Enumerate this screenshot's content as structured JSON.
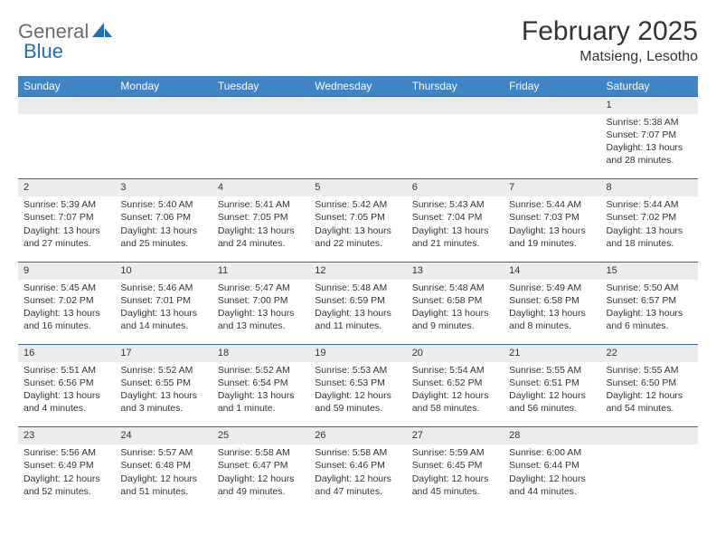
{
  "logo": {
    "part1": "General",
    "part2": "Blue"
  },
  "title": "February 2025",
  "location": "Matsieng, Lesotho",
  "header_bg": "#3f84c4",
  "daynum_bg": "#ececec",
  "border_color": "#2f6aa3",
  "dayNames": [
    "Sunday",
    "Monday",
    "Tuesday",
    "Wednesday",
    "Thursday",
    "Friday",
    "Saturday"
  ],
  "weeks": [
    [
      {
        "num": "",
        "lines": [
          "",
          "",
          "",
          ""
        ]
      },
      {
        "num": "",
        "lines": [
          "",
          "",
          "",
          ""
        ]
      },
      {
        "num": "",
        "lines": [
          "",
          "",
          "",
          ""
        ]
      },
      {
        "num": "",
        "lines": [
          "",
          "",
          "",
          ""
        ]
      },
      {
        "num": "",
        "lines": [
          "",
          "",
          "",
          ""
        ]
      },
      {
        "num": "",
        "lines": [
          "",
          "",
          "",
          ""
        ]
      },
      {
        "num": "1",
        "lines": [
          "Sunrise: 5:38 AM",
          "Sunset: 7:07 PM",
          "Daylight: 13 hours",
          "and 28 minutes."
        ]
      }
    ],
    [
      {
        "num": "2",
        "lines": [
          "Sunrise: 5:39 AM",
          "Sunset: 7:07 PM",
          "Daylight: 13 hours",
          "and 27 minutes."
        ]
      },
      {
        "num": "3",
        "lines": [
          "Sunrise: 5:40 AM",
          "Sunset: 7:06 PM",
          "Daylight: 13 hours",
          "and 25 minutes."
        ]
      },
      {
        "num": "4",
        "lines": [
          "Sunrise: 5:41 AM",
          "Sunset: 7:05 PM",
          "Daylight: 13 hours",
          "and 24 minutes."
        ]
      },
      {
        "num": "5",
        "lines": [
          "Sunrise: 5:42 AM",
          "Sunset: 7:05 PM",
          "Daylight: 13 hours",
          "and 22 minutes."
        ]
      },
      {
        "num": "6",
        "lines": [
          "Sunrise: 5:43 AM",
          "Sunset: 7:04 PM",
          "Daylight: 13 hours",
          "and 21 minutes."
        ]
      },
      {
        "num": "7",
        "lines": [
          "Sunrise: 5:44 AM",
          "Sunset: 7:03 PM",
          "Daylight: 13 hours",
          "and 19 minutes."
        ]
      },
      {
        "num": "8",
        "lines": [
          "Sunrise: 5:44 AM",
          "Sunset: 7:02 PM",
          "Daylight: 13 hours",
          "and 18 minutes."
        ]
      }
    ],
    [
      {
        "num": "9",
        "lines": [
          "Sunrise: 5:45 AM",
          "Sunset: 7:02 PM",
          "Daylight: 13 hours",
          "and 16 minutes."
        ]
      },
      {
        "num": "10",
        "lines": [
          "Sunrise: 5:46 AM",
          "Sunset: 7:01 PM",
          "Daylight: 13 hours",
          "and 14 minutes."
        ]
      },
      {
        "num": "11",
        "lines": [
          "Sunrise: 5:47 AM",
          "Sunset: 7:00 PM",
          "Daylight: 13 hours",
          "and 13 minutes."
        ]
      },
      {
        "num": "12",
        "lines": [
          "Sunrise: 5:48 AM",
          "Sunset: 6:59 PM",
          "Daylight: 13 hours",
          "and 11 minutes."
        ]
      },
      {
        "num": "13",
        "lines": [
          "Sunrise: 5:48 AM",
          "Sunset: 6:58 PM",
          "Daylight: 13 hours",
          "and 9 minutes."
        ]
      },
      {
        "num": "14",
        "lines": [
          "Sunrise: 5:49 AM",
          "Sunset: 6:58 PM",
          "Daylight: 13 hours",
          "and 8 minutes."
        ]
      },
      {
        "num": "15",
        "lines": [
          "Sunrise: 5:50 AM",
          "Sunset: 6:57 PM",
          "Daylight: 13 hours",
          "and 6 minutes."
        ]
      }
    ],
    [
      {
        "num": "16",
        "lines": [
          "Sunrise: 5:51 AM",
          "Sunset: 6:56 PM",
          "Daylight: 13 hours",
          "and 4 minutes."
        ]
      },
      {
        "num": "17",
        "lines": [
          "Sunrise: 5:52 AM",
          "Sunset: 6:55 PM",
          "Daylight: 13 hours",
          "and 3 minutes."
        ]
      },
      {
        "num": "18",
        "lines": [
          "Sunrise: 5:52 AM",
          "Sunset: 6:54 PM",
          "Daylight: 13 hours",
          "and 1 minute."
        ]
      },
      {
        "num": "19",
        "lines": [
          "Sunrise: 5:53 AM",
          "Sunset: 6:53 PM",
          "Daylight: 12 hours",
          "and 59 minutes."
        ]
      },
      {
        "num": "20",
        "lines": [
          "Sunrise: 5:54 AM",
          "Sunset: 6:52 PM",
          "Daylight: 12 hours",
          "and 58 minutes."
        ]
      },
      {
        "num": "21",
        "lines": [
          "Sunrise: 5:55 AM",
          "Sunset: 6:51 PM",
          "Daylight: 12 hours",
          "and 56 minutes."
        ]
      },
      {
        "num": "22",
        "lines": [
          "Sunrise: 5:55 AM",
          "Sunset: 6:50 PM",
          "Daylight: 12 hours",
          "and 54 minutes."
        ]
      }
    ],
    [
      {
        "num": "23",
        "lines": [
          "Sunrise: 5:56 AM",
          "Sunset: 6:49 PM",
          "Daylight: 12 hours",
          "and 52 minutes."
        ]
      },
      {
        "num": "24",
        "lines": [
          "Sunrise: 5:57 AM",
          "Sunset: 6:48 PM",
          "Daylight: 12 hours",
          "and 51 minutes."
        ]
      },
      {
        "num": "25",
        "lines": [
          "Sunrise: 5:58 AM",
          "Sunset: 6:47 PM",
          "Daylight: 12 hours",
          "and 49 minutes."
        ]
      },
      {
        "num": "26",
        "lines": [
          "Sunrise: 5:58 AM",
          "Sunset: 6:46 PM",
          "Daylight: 12 hours",
          "and 47 minutes."
        ]
      },
      {
        "num": "27",
        "lines": [
          "Sunrise: 5:59 AM",
          "Sunset: 6:45 PM",
          "Daylight: 12 hours",
          "and 45 minutes."
        ]
      },
      {
        "num": "28",
        "lines": [
          "Sunrise: 6:00 AM",
          "Sunset: 6:44 PM",
          "Daylight: 12 hours",
          "and 44 minutes."
        ]
      },
      {
        "num": "",
        "lines": [
          "",
          "",
          "",
          ""
        ]
      }
    ]
  ]
}
